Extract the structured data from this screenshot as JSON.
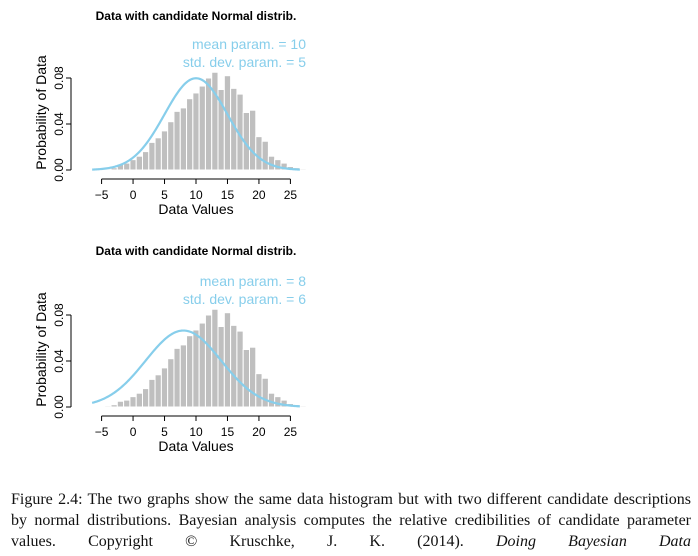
{
  "colors": {
    "bar_fill": "#bfbfbf",
    "curve": "#87ceeb",
    "annotation": "#87ceeb",
    "axis": "#000000"
  },
  "chart_data": [
    {
      "type": "bar",
      "title": "Data with candidate Normal distrib.",
      "xlabel": "Data Values",
      "ylabel": "Probability of Data",
      "xlim": [
        -7,
        27
      ],
      "ylim": [
        0,
        0.1
      ],
      "xticks": [
        "−5",
        "0",
        "5",
        "10",
        "15",
        "20",
        "25"
      ],
      "yticks": [
        "0.00",
        "0.04",
        "0.08"
      ],
      "bin_width": 1,
      "bins": [
        {
          "x": -4,
          "value": 0.001
        },
        {
          "x": -3,
          "value": 0.002
        },
        {
          "x": -2,
          "value": 0.005
        },
        {
          "x": -1,
          "value": 0.006
        },
        {
          "x": 0,
          "value": 0.009
        },
        {
          "x": 1,
          "value": 0.012
        },
        {
          "x": 2,
          "value": 0.016
        },
        {
          "x": 3,
          "value": 0.024
        },
        {
          "x": 4,
          "value": 0.028
        },
        {
          "x": 5,
          "value": 0.034
        },
        {
          "x": 6,
          "value": 0.042
        },
        {
          "x": 7,
          "value": 0.051
        },
        {
          "x": 8,
          "value": 0.054
        },
        {
          "x": 9,
          "value": 0.062
        },
        {
          "x": 10,
          "value": 0.067
        },
        {
          "x": 11,
          "value": 0.073
        },
        {
          "x": 12,
          "value": 0.08
        },
        {
          "x": 13,
          "value": 0.085
        },
        {
          "x": 14,
          "value": 0.07
        },
        {
          "x": 15,
          "value": 0.082
        },
        {
          "x": 16,
          "value": 0.071
        },
        {
          "x": 17,
          "value": 0.066
        },
        {
          "x": 18,
          "value": 0.05
        },
        {
          "x": 19,
          "value": 0.052
        },
        {
          "x": 20,
          "value": 0.029
        },
        {
          "x": 21,
          "value": 0.025
        },
        {
          "x": 22,
          "value": 0.012
        },
        {
          "x": 23,
          "value": 0.009
        },
        {
          "x": 24,
          "value": 0.006
        },
        {
          "x": 25,
          "value": 0.003
        },
        {
          "x": 26,
          "value": 0.002
        },
        {
          "x": 27,
          "value": 0.001
        }
      ],
      "curve": {
        "mean": 10,
        "sd": 5
      },
      "annotations": [
        "mean param. = 10",
        "std. dev. param. = 5"
      ]
    },
    {
      "type": "bar",
      "title": "Data with candidate Normal distrib.",
      "xlabel": "Data Values",
      "ylabel": "Probability of Data",
      "xlim": [
        -7,
        27
      ],
      "ylim": [
        0,
        0.1
      ],
      "xticks": [
        "−5",
        "0",
        "5",
        "10",
        "15",
        "20",
        "25"
      ],
      "yticks": [
        "0.00",
        "0.04",
        "0.08"
      ],
      "bin_width": 1,
      "bins": [
        {
          "x": -4,
          "value": 0.001
        },
        {
          "x": -3,
          "value": 0.002
        },
        {
          "x": -2,
          "value": 0.005
        },
        {
          "x": -1,
          "value": 0.006
        },
        {
          "x": 0,
          "value": 0.009
        },
        {
          "x": 1,
          "value": 0.012
        },
        {
          "x": 2,
          "value": 0.016
        },
        {
          "x": 3,
          "value": 0.024
        },
        {
          "x": 4,
          "value": 0.028
        },
        {
          "x": 5,
          "value": 0.034
        },
        {
          "x": 6,
          "value": 0.042
        },
        {
          "x": 7,
          "value": 0.051
        },
        {
          "x": 8,
          "value": 0.054
        },
        {
          "x": 9,
          "value": 0.062
        },
        {
          "x": 10,
          "value": 0.067
        },
        {
          "x": 11,
          "value": 0.073
        },
        {
          "x": 12,
          "value": 0.08
        },
        {
          "x": 13,
          "value": 0.085
        },
        {
          "x": 14,
          "value": 0.07
        },
        {
          "x": 15,
          "value": 0.082
        },
        {
          "x": 16,
          "value": 0.071
        },
        {
          "x": 17,
          "value": 0.066
        },
        {
          "x": 18,
          "value": 0.05
        },
        {
          "x": 19,
          "value": 0.052
        },
        {
          "x": 20,
          "value": 0.029
        },
        {
          "x": 21,
          "value": 0.025
        },
        {
          "x": 22,
          "value": 0.012
        },
        {
          "x": 23,
          "value": 0.009
        },
        {
          "x": 24,
          "value": 0.006
        },
        {
          "x": 25,
          "value": 0.003
        },
        {
          "x": 26,
          "value": 0.002
        },
        {
          "x": 27,
          "value": 0.001
        }
      ],
      "curve": {
        "mean": 8,
        "sd": 6
      },
      "annotations": [
        "mean param. = 8",
        "std. dev. param. = 6"
      ]
    }
  ],
  "caption": {
    "label": "Figure 2.4:",
    "text": "The two graphs show the same data histogram but with two different candidate descriptions by normal distributions. Bayesian analysis computes the relative credibilities of candidate parameter values.",
    "copyright": "Copyright © Kruschke, J. K. (2014).",
    "book": "Doing Bayesian Data"
  }
}
